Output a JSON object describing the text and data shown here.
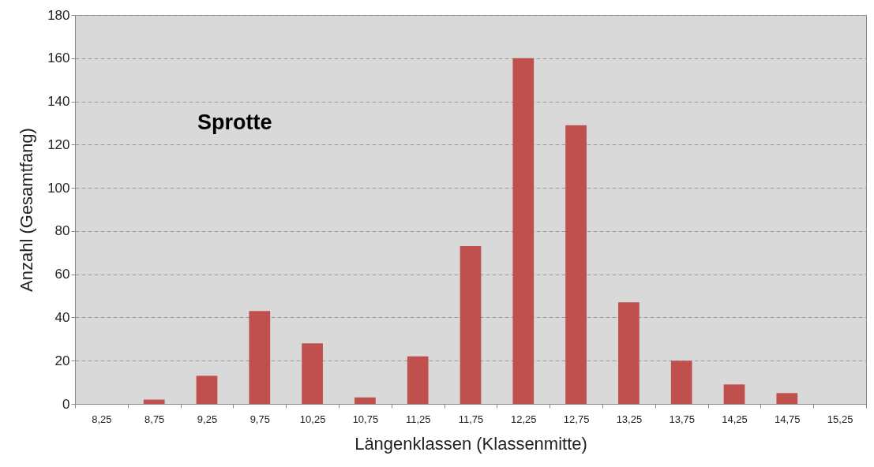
{
  "chart_data": {
    "type": "bar",
    "title": "Sprotte",
    "xlabel": "Längenklassen (Klassenmitte)",
    "ylabel": "Anzahl (Gesamtfang)",
    "categories": [
      "8,25",
      "8,75",
      "9,25",
      "9,75",
      "10,25",
      "10,75",
      "11,25",
      "11,75",
      "12,25",
      "12,75",
      "13,25",
      "13,75",
      "14,25",
      "14,75",
      "15,25"
    ],
    "values": [
      0,
      2,
      13,
      43,
      28,
      3,
      22,
      73,
      160,
      129,
      47,
      20,
      9,
      5,
      0
    ],
    "color": "#c0504d",
    "ylim": [
      0,
      180
    ],
    "yticks": [
      0,
      20,
      40,
      60,
      80,
      100,
      120,
      140,
      160,
      180
    ],
    "grid": "y"
  }
}
